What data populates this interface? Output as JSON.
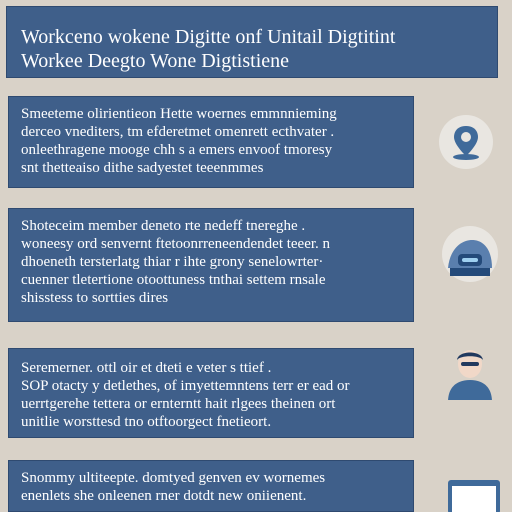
{
  "header": {
    "line1": "Workceno wokene  Digitte onf Unitail Digtitint",
    "line2": "Workee  Deegto Wone  Digtistiene"
  },
  "cards": [
    {
      "lines": [
        "Smeeteme olirientieon  Hette woernes emmnnieming",
        "derceo vnediters, tm efderetmet omenrett ecthvater .",
        "onleethragene mooge chh s a emers envoof tmoresy",
        "snt thetteaiso  dithe  sadyestet teeenmmes"
      ]
    },
    {
      "lines": [
        "Shoteceim member deneto rte nedeff tnereghe .",
        "woneesy ord senvernt  ftetoonrreneendendet teeer. n",
        "dhoeneth tersterlatg thiar  r ihte grony senelowrter·",
        "cuenner tletertione otoottuness tnthai settem rnsale",
        "shisstess to sortties dires"
      ]
    },
    {
      "lines": [
        "Seremerner.  ottl oir et dteti e  veter s ttief .",
        "SOP otacty  y detlethes, of imyettemntens terr er ead or",
        "uerrtgerehe tettera or ernterntt hait  rlgees  theinen ort",
        "unitlie  worsttesd tno otftoorgect fnetieort."
      ]
    },
    {
      "lines": [
        "Snommy  ultiteepte.  domtyed genven  ev wornemes",
        "enenlets she  onleenen  rner dotdt new oniienent."
      ]
    }
  ],
  "icons": [
    "location-pin-icon",
    "robot-head-icon",
    "user-portrait-icon",
    "monitor-icon"
  ],
  "colors": {
    "background": "#d9d2c8",
    "card": "#3f5f8a",
    "icon_circle": "#e9e6e1",
    "icon_blue": "#3f6a9a"
  }
}
